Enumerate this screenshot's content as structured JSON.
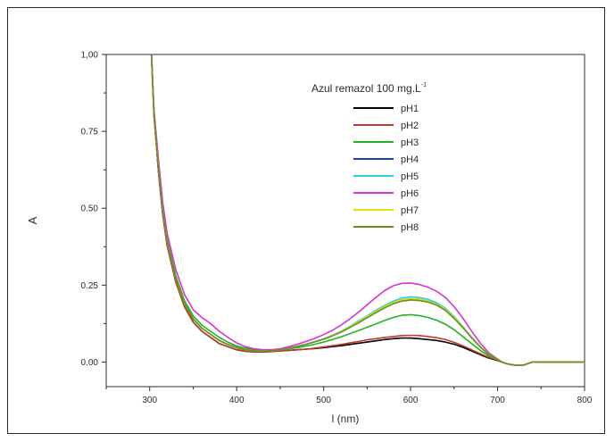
{
  "chart_data": {
    "type": "line",
    "title": "",
    "xlabel": "l (nm)",
    "ylabel": "A",
    "xlim": [
      250,
      800
    ],
    "ylim": [
      -0.08,
      1.0
    ],
    "xticks": [
      "300",
      "400",
      "500",
      "600",
      "700",
      "800"
    ],
    "yticks": [
      "0.00",
      "0.25",
      "0.50",
      "0.75",
      "1,00"
    ],
    "grid": false,
    "legend_title": "Azul remazol 100 mg.L",
    "legend_title_superscript": "-1",
    "legend_position": "top-right",
    "series": [
      {
        "name": "pH1",
        "color": "#000000",
        "x": [
          302,
          305,
          310,
          315,
          320,
          330,
          340,
          350,
          360,
          370,
          380,
          390,
          400,
          410,
          420,
          430,
          440,
          450,
          460,
          470,
          480,
          490,
          500,
          510,
          520,
          530,
          540,
          550,
          560,
          570,
          580,
          590,
          600,
          610,
          620,
          630,
          640,
          650,
          660,
          670,
          680,
          690,
          700,
          705,
          710,
          715,
          720,
          730,
          740,
          760,
          780,
          800
        ],
        "y": [
          1.0,
          0.8,
          0.62,
          0.48,
          0.38,
          0.26,
          0.18,
          0.13,
          0.1,
          0.08,
          0.06,
          0.05,
          0.04,
          0.035,
          0.033,
          0.033,
          0.034,
          0.036,
          0.038,
          0.04,
          0.042,
          0.044,
          0.047,
          0.05,
          0.053,
          0.057,
          0.061,
          0.065,
          0.069,
          0.073,
          0.076,
          0.078,
          0.078,
          0.076,
          0.073,
          0.07,
          0.065,
          0.058,
          0.048,
          0.036,
          0.024,
          0.013,
          0.005,
          0.0,
          -0.005,
          -0.008,
          -0.01,
          -0.01,
          0.0,
          0.0,
          0.0,
          0.0
        ]
      },
      {
        "name": "pH2",
        "color": "#c0392b",
        "x": [
          302,
          305,
          310,
          315,
          320,
          330,
          340,
          350,
          360,
          370,
          380,
          390,
          400,
          410,
          420,
          430,
          440,
          450,
          460,
          470,
          480,
          490,
          500,
          510,
          520,
          530,
          540,
          550,
          560,
          570,
          580,
          590,
          600,
          610,
          620,
          630,
          640,
          650,
          660,
          670,
          680,
          690,
          700,
          705,
          710,
          715,
          720,
          730,
          740,
          760,
          780,
          800
        ],
        "y": [
          1.0,
          0.8,
          0.62,
          0.48,
          0.38,
          0.26,
          0.18,
          0.13,
          0.1,
          0.08,
          0.06,
          0.05,
          0.04,
          0.035,
          0.033,
          0.033,
          0.034,
          0.036,
          0.038,
          0.04,
          0.042,
          0.045,
          0.049,
          0.053,
          0.057,
          0.062,
          0.067,
          0.072,
          0.076,
          0.08,
          0.083,
          0.086,
          0.087,
          0.086,
          0.083,
          0.079,
          0.073,
          0.064,
          0.053,
          0.04,
          0.027,
          0.015,
          0.006,
          0.0,
          -0.005,
          -0.008,
          -0.01,
          -0.01,
          0.0,
          0.0,
          0.0,
          0.0
        ]
      },
      {
        "name": "pH3",
        "color": "#22b422",
        "x": [
          302,
          305,
          310,
          315,
          320,
          330,
          340,
          350,
          360,
          370,
          380,
          390,
          400,
          410,
          420,
          430,
          440,
          450,
          460,
          470,
          480,
          490,
          500,
          510,
          520,
          530,
          540,
          550,
          560,
          570,
          580,
          590,
          600,
          610,
          620,
          630,
          640,
          650,
          660,
          670,
          680,
          690,
          700,
          705,
          710,
          715,
          720,
          730,
          740,
          760,
          780,
          800
        ],
        "y": [
          1.0,
          0.81,
          0.64,
          0.5,
          0.4,
          0.28,
          0.2,
          0.15,
          0.12,
          0.1,
          0.08,
          0.065,
          0.052,
          0.045,
          0.04,
          0.038,
          0.038,
          0.04,
          0.043,
          0.047,
          0.052,
          0.058,
          0.065,
          0.073,
          0.082,
          0.092,
          0.102,
          0.113,
          0.124,
          0.135,
          0.145,
          0.152,
          0.154,
          0.151,
          0.145,
          0.136,
          0.123,
          0.105,
          0.083,
          0.06,
          0.038,
          0.02,
          0.008,
          0.0,
          -0.005,
          -0.008,
          -0.01,
          -0.01,
          0.0,
          0.0,
          0.0,
          0.0
        ]
      },
      {
        "name": "pH4",
        "color": "#1f3fb5",
        "x": [
          302,
          305,
          310,
          315,
          320,
          330,
          340,
          350,
          360,
          370,
          380,
          390,
          400,
          410,
          420,
          430,
          440,
          450,
          460,
          470,
          480,
          490,
          500,
          510,
          520,
          530,
          540,
          550,
          560,
          570,
          580,
          590,
          600,
          610,
          620,
          630,
          640,
          650,
          660,
          670,
          680,
          690,
          700,
          705,
          710,
          715,
          720,
          730,
          740,
          760,
          780,
          800
        ],
        "y": [
          1.0,
          0.8,
          0.63,
          0.49,
          0.39,
          0.27,
          0.19,
          0.14,
          0.11,
          0.09,
          0.07,
          0.057,
          0.047,
          0.04,
          0.036,
          0.036,
          0.037,
          0.04,
          0.045,
          0.051,
          0.058,
          0.066,
          0.075,
          0.086,
          0.099,
          0.114,
          0.13,
          0.147,
          0.164,
          0.18,
          0.193,
          0.202,
          0.206,
          0.204,
          0.198,
          0.188,
          0.171,
          0.145,
          0.114,
          0.081,
          0.05,
          0.025,
          0.009,
          0.0,
          -0.005,
          -0.008,
          -0.01,
          -0.01,
          0.0,
          0.0,
          0.0,
          0.0
        ]
      },
      {
        "name": "pH5",
        "color": "#28d0e0",
        "x": [
          302,
          305,
          310,
          315,
          320,
          330,
          340,
          350,
          360,
          370,
          380,
          390,
          400,
          410,
          420,
          430,
          440,
          450,
          460,
          470,
          480,
          490,
          500,
          510,
          520,
          530,
          540,
          550,
          560,
          570,
          580,
          590,
          600,
          610,
          620,
          630,
          640,
          650,
          660,
          670,
          680,
          690,
          700,
          705,
          710,
          715,
          720,
          730,
          740,
          760,
          780,
          800
        ],
        "y": [
          1.0,
          0.8,
          0.63,
          0.49,
          0.39,
          0.27,
          0.19,
          0.14,
          0.11,
          0.09,
          0.07,
          0.057,
          0.047,
          0.04,
          0.036,
          0.036,
          0.037,
          0.04,
          0.045,
          0.051,
          0.058,
          0.066,
          0.076,
          0.087,
          0.1,
          0.116,
          0.133,
          0.15,
          0.168,
          0.184,
          0.198,
          0.208,
          0.212,
          0.21,
          0.204,
          0.193,
          0.175,
          0.148,
          0.116,
          0.082,
          0.05,
          0.025,
          0.009,
          0.0,
          -0.005,
          -0.008,
          -0.01,
          -0.01,
          0.0,
          0.0,
          0.0,
          0.0
        ]
      },
      {
        "name": "pH6",
        "color": "#d633d6",
        "x": [
          302,
          305,
          310,
          315,
          320,
          330,
          340,
          350,
          360,
          370,
          380,
          390,
          400,
          410,
          420,
          430,
          440,
          450,
          460,
          470,
          480,
          490,
          500,
          510,
          520,
          530,
          540,
          550,
          560,
          570,
          580,
          590,
          600,
          610,
          620,
          630,
          640,
          650,
          660,
          670,
          680,
          690,
          700,
          705,
          710,
          715,
          720,
          730,
          740,
          760,
          780,
          800
        ],
        "y": [
          1.0,
          0.82,
          0.66,
          0.52,
          0.42,
          0.3,
          0.22,
          0.17,
          0.145,
          0.125,
          0.1,
          0.08,
          0.062,
          0.05,
          0.043,
          0.04,
          0.04,
          0.043,
          0.05,
          0.058,
          0.067,
          0.077,
          0.089,
          0.103,
          0.12,
          0.14,
          0.162,
          0.186,
          0.21,
          0.232,
          0.248,
          0.256,
          0.257,
          0.252,
          0.243,
          0.23,
          0.21,
          0.18,
          0.143,
          0.101,
          0.062,
          0.03,
          0.01,
          0.0,
          -0.005,
          -0.008,
          -0.01,
          -0.01,
          0.0,
          0.0,
          0.0,
          0.0
        ]
      },
      {
        "name": "pH7",
        "color": "#e8e000",
        "x": [
          302,
          305,
          310,
          315,
          320,
          330,
          340,
          350,
          360,
          370,
          380,
          390,
          400,
          410,
          420,
          430,
          440,
          450,
          460,
          470,
          480,
          490,
          500,
          510,
          520,
          530,
          540,
          550,
          560,
          570,
          580,
          590,
          600,
          610,
          620,
          630,
          640,
          650,
          660,
          670,
          680,
          690,
          700,
          705,
          710,
          715,
          720,
          730,
          740,
          760,
          780,
          800
        ],
        "y": [
          1.0,
          0.8,
          0.63,
          0.49,
          0.39,
          0.27,
          0.19,
          0.14,
          0.11,
          0.09,
          0.07,
          0.057,
          0.047,
          0.04,
          0.036,
          0.036,
          0.037,
          0.04,
          0.045,
          0.051,
          0.058,
          0.066,
          0.075,
          0.086,
          0.099,
          0.114,
          0.13,
          0.147,
          0.164,
          0.18,
          0.193,
          0.202,
          0.206,
          0.204,
          0.198,
          0.188,
          0.171,
          0.145,
          0.114,
          0.081,
          0.05,
          0.025,
          0.009,
          0.0,
          -0.005,
          -0.008,
          -0.01,
          -0.01,
          0.0,
          0.0,
          0.0,
          0.0
        ]
      },
      {
        "name": "pH8",
        "color": "#6b8e23",
        "x": [
          302,
          305,
          310,
          315,
          320,
          330,
          340,
          350,
          360,
          370,
          380,
          390,
          400,
          410,
          420,
          430,
          440,
          450,
          460,
          470,
          480,
          490,
          500,
          510,
          520,
          530,
          540,
          550,
          560,
          570,
          580,
          590,
          600,
          610,
          620,
          630,
          640,
          650,
          660,
          670,
          680,
          690,
          700,
          705,
          710,
          715,
          720,
          730,
          740,
          760,
          780,
          800
        ],
        "y": [
          1.0,
          0.8,
          0.63,
          0.49,
          0.39,
          0.27,
          0.19,
          0.14,
          0.11,
          0.09,
          0.07,
          0.057,
          0.047,
          0.04,
          0.036,
          0.036,
          0.037,
          0.04,
          0.045,
          0.051,
          0.058,
          0.066,
          0.074,
          0.085,
          0.097,
          0.112,
          0.127,
          0.144,
          0.16,
          0.176,
          0.189,
          0.198,
          0.202,
          0.2,
          0.195,
          0.185,
          0.168,
          0.142,
          0.112,
          0.079,
          0.049,
          0.024,
          0.009,
          0.0,
          -0.005,
          -0.008,
          -0.01,
          -0.01,
          0.0,
          0.0,
          0.0,
          0.0
        ]
      }
    ]
  }
}
